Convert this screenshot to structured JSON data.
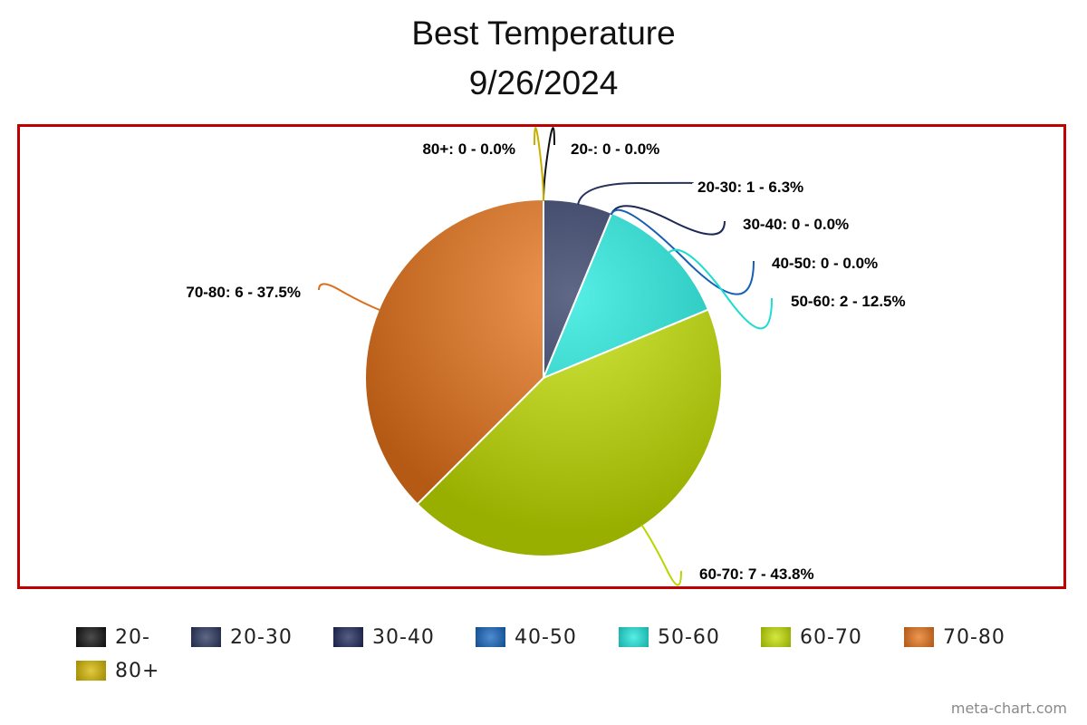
{
  "chart_data": {
    "type": "pie",
    "title": "Best Temperature",
    "subtitle": "9/26/2024",
    "categories": [
      "20-",
      "20-30",
      "30-40",
      "40-50",
      "50-60",
      "60-70",
      "70-80",
      "80+"
    ],
    "values": [
      0,
      1,
      0,
      0,
      2,
      7,
      6,
      0
    ],
    "labels": [
      "20-: 0 - 0.0%",
      "20-30: 1 - 6.3%",
      "30-40: 0 - 0.0%",
      "40-50: 0 - 0.0%",
      "50-60: 2 - 12.5%",
      "60-70: 7 - 43.8%",
      "70-80: 6 - 37.5%",
      "80+: 0 - 0.0%"
    ],
    "colors": [
      "#111111",
      "#2b3560",
      "#1e2a5a",
      "#1565c0",
      "#1ee8dc",
      "#c4e000",
      "#e8741a",
      "#d4b800"
    ],
    "legend_labels": [
      "20-",
      "20-30",
      "30-40",
      "40-50",
      "50-60",
      "60-70",
      "70-80",
      "80+"
    ],
    "legend_position": "bottom"
  },
  "credit": "meta-chart.com"
}
